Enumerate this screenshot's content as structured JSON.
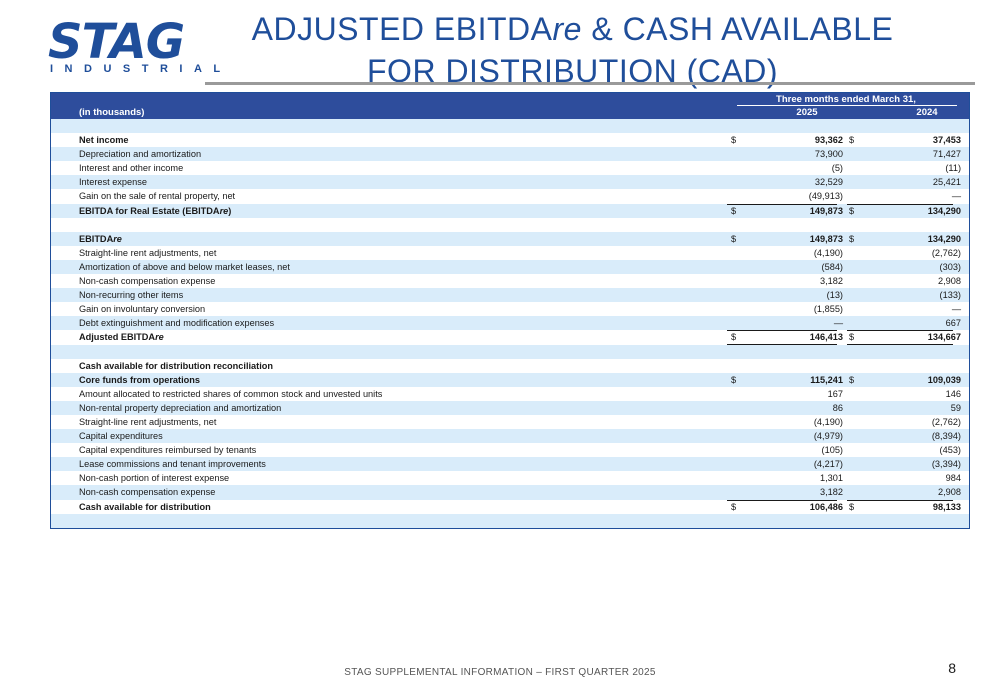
{
  "logo": {
    "word": "STAG",
    "sub": "INDUSTRIAL"
  },
  "title": {
    "part1": "ADJUSTED EBITDA",
    "italic": "re",
    "part2": " & CASH AVAILABLE FOR DISTRIBUTION (CAD)"
  },
  "table": {
    "period_header": "Three months ended March 31,",
    "units_label": "(in thousands)",
    "year1": "2025",
    "year2": "2024",
    "rows": [
      {
        "label": "",
        "d1": "",
        "v1": "",
        "d2": "",
        "v2": ""
      },
      {
        "label": "Net income",
        "d1": "$",
        "v1": "93,362",
        "d2": "$",
        "v2": "37,453"
      },
      {
        "label": "Depreciation and amortization",
        "d1": "",
        "v1": "73,900",
        "d2": "",
        "v2": "71,427"
      },
      {
        "label": "Interest and other income",
        "d1": "",
        "v1": "(5)",
        "d2": "",
        "v2": "(11)"
      },
      {
        "label": "Interest expense",
        "d1": "",
        "v1": "32,529",
        "d2": "",
        "v2": "25,421"
      },
      {
        "label": "Gain on the sale of rental property, net",
        "d1": "",
        "v1": "(49,913)",
        "d2": "",
        "v2": "—"
      },
      {
        "label": "EBITDA for Real Estate (EBITDAre)",
        "d1": "$",
        "v1": "149,873",
        "d2": "$",
        "v2": "134,290"
      },
      {
        "label": "",
        "d1": "",
        "v1": "",
        "d2": "",
        "v2": ""
      },
      {
        "label": "EBITDAre",
        "d1": "$",
        "v1": "149,873",
        "d2": "$",
        "v2": "134,290"
      },
      {
        "label": "Straight-line rent adjustments, net",
        "d1": "",
        "v1": "(4,190)",
        "d2": "",
        "v2": "(2,762)"
      },
      {
        "label": "Amortization of above and below market leases, net",
        "d1": "",
        "v1": "(584)",
        "d2": "",
        "v2": "(303)"
      },
      {
        "label": "Non-cash compensation expense",
        "d1": "",
        "v1": "3,182",
        "d2": "",
        "v2": "2,908"
      },
      {
        "label": "Non-recurring other items",
        "d1": "",
        "v1": "(13)",
        "d2": "",
        "v2": "(133)"
      },
      {
        "label": "Gain on involuntary conversion",
        "d1": "",
        "v1": "(1,855)",
        "d2": "",
        "v2": "—"
      },
      {
        "label": "Debt extinguishment and modification expenses",
        "d1": "",
        "v1": "—",
        "d2": "",
        "v2": "667"
      },
      {
        "label": "Adjusted EBITDAre",
        "d1": "$",
        "v1": "146,413",
        "d2": "$",
        "v2": "134,667"
      },
      {
        "label": "",
        "d1": "",
        "v1": "",
        "d2": "",
        "v2": ""
      },
      {
        "label": "Cash available for distribution reconciliation",
        "d1": "",
        "v1": "",
        "d2": "",
        "v2": ""
      },
      {
        "label": "Core funds from operations",
        "d1": "$",
        "v1": "115,241",
        "d2": "$",
        "v2": "109,039"
      },
      {
        "label": "Amount allocated to restricted shares of common stock and unvested units",
        "d1": "",
        "v1": "167",
        "d2": "",
        "v2": "146"
      },
      {
        "label": "Non-rental property depreciation and amortization",
        "d1": "",
        "v1": "86",
        "d2": "",
        "v2": "59"
      },
      {
        "label": "Straight-line rent adjustments, net",
        "d1": "",
        "v1": "(4,190)",
        "d2": "",
        "v2": "(2,762)"
      },
      {
        "label": "Capital expenditures",
        "d1": "",
        "v1": "(4,979)",
        "d2": "",
        "v2": "(8,394)"
      },
      {
        "label": "Capital expenditures reimbursed by tenants",
        "d1": "",
        "v1": "(105)",
        "d2": "",
        "v2": "(453)"
      },
      {
        "label": "Lease commissions and tenant improvements",
        "d1": "",
        "v1": "(4,217)",
        "d2": "",
        "v2": "(3,394)"
      },
      {
        "label": "Non-cash portion of interest expense",
        "d1": "",
        "v1": "1,301",
        "d2": "",
        "v2": "984"
      },
      {
        "label": "Non-cash compensation expense",
        "d1": "",
        "v1": "3,182",
        "d2": "",
        "v2": "2,908"
      },
      {
        "label": "Cash available for distribution",
        "d1": "$",
        "v1": "106,486",
        "d2": "$",
        "v2": "98,133"
      },
      {
        "label": "",
        "d1": "",
        "v1": "",
        "d2": "",
        "v2": ""
      }
    ]
  },
  "footer": "STAG SUPPLEMENTAL INFORMATION – FIRST QUARTER 2025",
  "page_number": "8"
}
